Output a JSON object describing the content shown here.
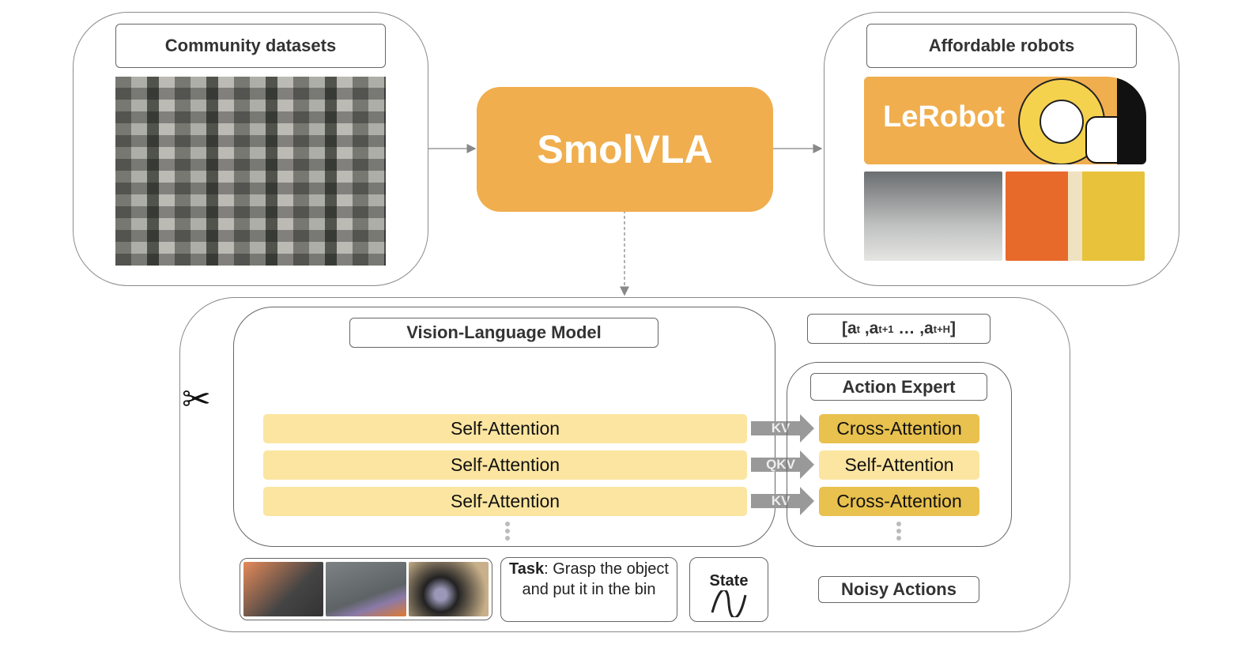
{
  "left_panel": {
    "title": "Community datasets"
  },
  "center": {
    "title": "SmolVLA",
    "color": "#F0AE4E"
  },
  "right_panel": {
    "title": "Affordable robots",
    "logo_text": "LeRobot",
    "logo_color": "#F0AE4E"
  },
  "vlm": {
    "title": "Vision-Language Model",
    "layers": [
      "Self-Attention",
      "Self-Attention",
      "Self-Attention"
    ]
  },
  "connectors": [
    "KV",
    "QKV",
    "KV"
  ],
  "action_expert": {
    "title": "Action Expert",
    "layers": [
      "Cross-Attention",
      "Self-Attention",
      "Cross-Attention"
    ]
  },
  "output": {
    "a": "a",
    "t": "t",
    "t1": "t+1",
    "tH": "t+H",
    "sep": ",",
    "ellipsis": "…"
  },
  "inputs": {
    "task_label": "Task",
    "task_text": ": Grasp the object and put it in the bin",
    "state": "State",
    "noisy": "Noisy Actions"
  },
  "colors": {
    "self_attention": "#FBE5A0",
    "cross_attention": "#E8C14E",
    "arrow": "#999999"
  }
}
